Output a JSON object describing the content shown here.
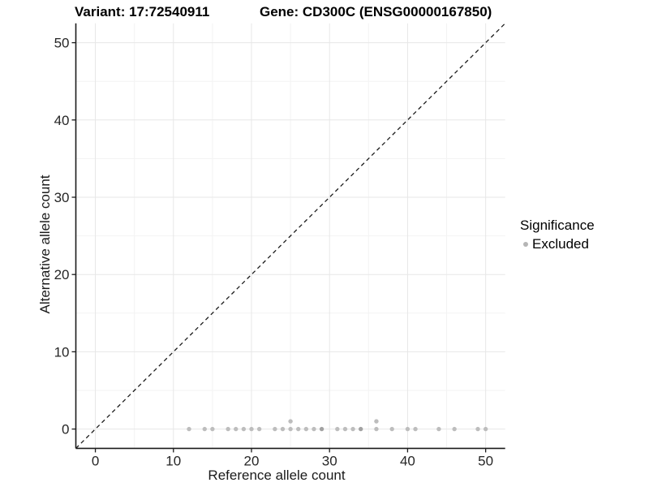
{
  "chart_data": {
    "type": "scatter",
    "title_left": "Variant: 17:72540911",
    "title_right": "Gene: CD300C (ENSG00000167850)",
    "xlabel": "Reference allele count",
    "ylabel": "Alternative allele count",
    "xlim": [
      -2.5,
      52.5
    ],
    "ylim": [
      -2.5,
      52.5
    ],
    "xticks": [
      0,
      10,
      20,
      30,
      40,
      50
    ],
    "yticks": [
      0,
      10,
      20,
      30,
      40,
      50
    ],
    "minor_ticks": [
      5,
      15,
      25,
      35,
      45
    ],
    "grid": "on",
    "identity_line": {
      "style": "dashed",
      "x1": -2.5,
      "y1": -2.5,
      "x2": 52.5,
      "y2": 52.5
    },
    "legend": {
      "title": "Significance",
      "position": "right",
      "items": [
        {
          "label": "Excluded",
          "color": "#b5b5b5"
        }
      ]
    },
    "series": [
      {
        "name": "Excluded",
        "color": "#bdbdbd",
        "points": [
          {
            "x": 12,
            "y": 0
          },
          {
            "x": 14,
            "y": 0
          },
          {
            "x": 15,
            "y": 0
          },
          {
            "x": 17,
            "y": 0
          },
          {
            "x": 18,
            "y": 0
          },
          {
            "x": 19,
            "y": 0
          },
          {
            "x": 20,
            "y": 0
          },
          {
            "x": 21,
            "y": 0
          },
          {
            "x": 23,
            "y": 0
          },
          {
            "x": 24,
            "y": 0
          },
          {
            "x": 25,
            "y": 0
          },
          {
            "x": 25,
            "y": 1
          },
          {
            "x": 26,
            "y": 0
          },
          {
            "x": 27,
            "y": 0
          },
          {
            "x": 28,
            "y": 0
          },
          {
            "x": 29,
            "y": 0,
            "overlap": true
          },
          {
            "x": 31,
            "y": 0
          },
          {
            "x": 32,
            "y": 0
          },
          {
            "x": 33,
            "y": 0
          },
          {
            "x": 34,
            "y": 0,
            "overlap": true
          },
          {
            "x": 36,
            "y": 0
          },
          {
            "x": 36,
            "y": 1
          },
          {
            "x": 38,
            "y": 0
          },
          {
            "x": 40,
            "y": 0
          },
          {
            "x": 41,
            "y": 0
          },
          {
            "x": 44,
            "y": 0
          },
          {
            "x": 46,
            "y": 0
          },
          {
            "x": 49,
            "y": 0
          },
          {
            "x": 50,
            "y": 0
          }
        ]
      }
    ],
    "colors": {
      "point": "#bdbdbd",
      "point_overlap": "#a2a2a2",
      "grid_major": "#e7e7e7",
      "grid_minor": "#f3f3f3",
      "axis": "#1c1c1c",
      "text": "#262626",
      "background": "#ffffff"
    }
  }
}
